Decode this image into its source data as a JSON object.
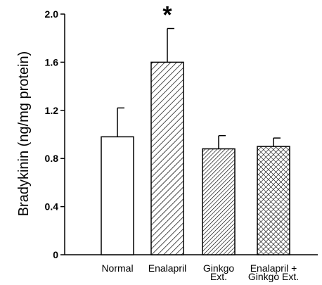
{
  "chart_data": {
    "type": "bar",
    "title": "",
    "xlabel": "",
    "ylabel": "Bradykinin (ng/mg protein)",
    "ylim": [
      0,
      2.0
    ],
    "yticks": [
      {
        "value": 0,
        "label": "0"
      },
      {
        "value": 0.4,
        "label": "0.4"
      },
      {
        "value": 0.8,
        "label": "0.8"
      },
      {
        "value": 1.2,
        "label": "1.2"
      },
      {
        "value": 1.6,
        "label": "1.6"
      },
      {
        "value": 2.0,
        "label": "2.0"
      }
    ],
    "categories": [
      [
        "Normal"
      ],
      [
        "Enalapril"
      ],
      [
        "Ginkgo",
        "Ext."
      ],
      [
        "Enalapril +",
        "Ginkgo Ext."
      ]
    ],
    "values": [
      0.98,
      1.6,
      0.88,
      0.9
    ],
    "error_upper": [
      1.22,
      1.88,
      0.99,
      0.97
    ],
    "fills": [
      "open",
      "diagonal-hatch",
      "diagonal-hatch-dense",
      "crosshatch"
    ],
    "annotations": [
      {
        "category_index": 1,
        "text": "*"
      }
    ],
    "grid": false,
    "legend": "none"
  }
}
